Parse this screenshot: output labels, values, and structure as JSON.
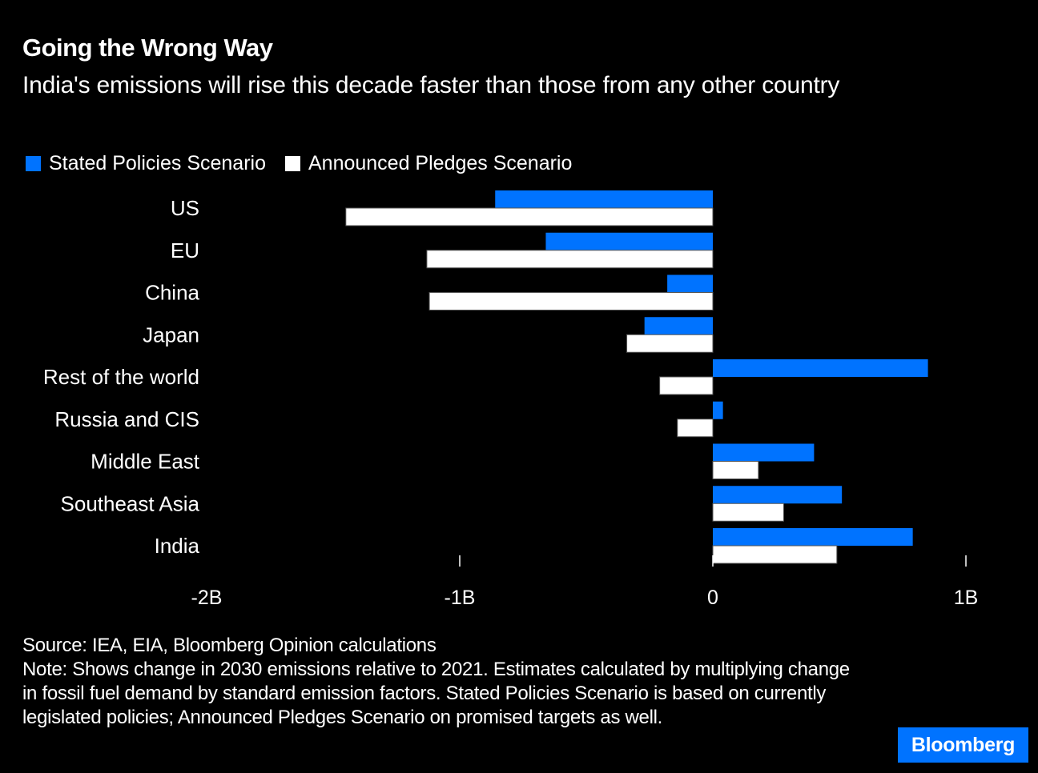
{
  "colors": {
    "background": "#000000",
    "stated": "#0073FF",
    "announced": "#FFFFFF",
    "text": "#FFFFFF",
    "brand_bg": "#0073FF"
  },
  "header": {
    "title": "Going the Wrong Way",
    "subtitle": "India's emissions will rise this decade faster than those from any other country"
  },
  "footer": {
    "source": "Source: IEA, EIA, Bloomberg Opinion calculations",
    "note": "Note: Shows change in 2030 emissions relative to 2021. Estimates calculated by multiplying change in fossil fuel demand by standard emission factors. Stated Policies Scenario is based on currently legislated policies; Announced Pledges Scenario on promised targets as well."
  },
  "brand": {
    "label": "Bloomberg"
  },
  "chart_data": {
    "type": "bar",
    "orientation": "horizontal",
    "title": "Going the Wrong Way",
    "subtitle": "India's emissions will rise this decade faster than those from any other country",
    "xlabel": "",
    "ylabel": "",
    "unit": "tonnes CO2 (change 2021→2030)",
    "categories": [
      "US",
      "EU",
      "China",
      "Japan",
      "Rest of the world",
      "Russia and CIS",
      "Middle East",
      "Southeast Asia",
      "India"
    ],
    "series": [
      {
        "name": "Stated Policies Scenario",
        "color": "#0073FF",
        "values": [
          -0.86,
          -0.66,
          -0.18,
          -0.27,
          0.85,
          0.04,
          0.4,
          0.51,
          0.79
        ]
      },
      {
        "name": "Announced Pledges Scenario",
        "color": "#FFFFFF",
        "values": [
          -1.45,
          -1.13,
          -1.12,
          -0.34,
          -0.21,
          -0.14,
          0.18,
          0.28,
          0.49
        ]
      }
    ],
    "value_scale": "billions",
    "xlim": [
      -2,
      1.1
    ],
    "xticks": [
      {
        "value": -2,
        "label": "-2B"
      },
      {
        "value": -1,
        "label": "-1B"
      },
      {
        "value": 0,
        "label": "0"
      },
      {
        "value": 1,
        "label": "1B"
      }
    ],
    "grid": false,
    "legend": {
      "position": "top-left"
    }
  }
}
